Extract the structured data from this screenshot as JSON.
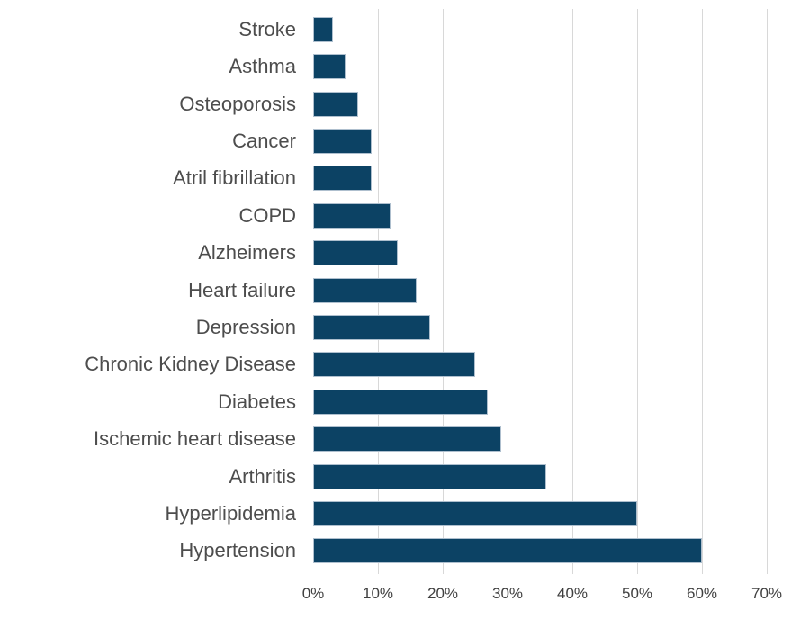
{
  "chart_data": {
    "type": "bar",
    "orientation": "horizontal",
    "title": "",
    "xlabel": "",
    "ylabel": "",
    "categories": [
      "Stroke",
      "Asthma",
      "Osteoporosis",
      "Cancer",
      "Atril fibrillation",
      "COPD",
      "Alzheimers",
      "Heart failure",
      "Depression",
      "Chronic Kidney Disease",
      "Diabetes",
      "Ischemic heart disease",
      "Arthritis",
      "Hyperlipidemia",
      "Hypertension"
    ],
    "values": [
      3,
      5,
      7,
      9,
      9,
      12,
      13,
      16,
      18,
      25,
      27,
      29,
      36,
      50,
      60
    ],
    "value_unit": "%",
    "xlim": [
      0,
      70
    ],
    "x_ticks": [
      "0%",
      "10%",
      "20%",
      "30%",
      "40%",
      "50%",
      "60%",
      "70%"
    ],
    "grid": "vertical-only",
    "legend": "none",
    "colors": {
      "bar": "#0c4264",
      "bar_border": "#aebfce",
      "gridline": "#d8d8d8",
      "category_label": "#4d4d4d",
      "tick_label": "#404040",
      "background": "#ffffff"
    }
  }
}
